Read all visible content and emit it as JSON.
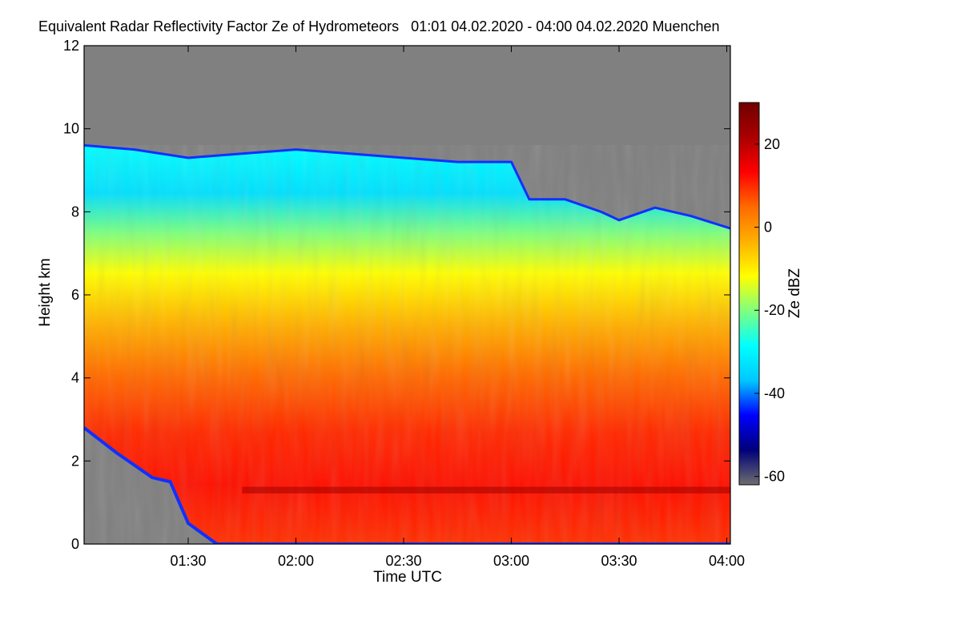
{
  "chart_data": {
    "type": "heatmap",
    "title": "Equivalent Radar Reflectivity Factor Ze of Hydrometeors   01:01 04.02.2020 - 04:00 04.02.2020 Muenchen",
    "xlabel": "Time UTC",
    "ylabel": "Height km",
    "x_unit": "hours UTC",
    "xlim": [
      "01:01",
      "04:01"
    ],
    "x_ticks": [
      "01:30",
      "02:00",
      "02:30",
      "03:00",
      "03:30",
      "04:00"
    ],
    "ylim": [
      0,
      12
    ],
    "y_ticks": [
      "0",
      "2",
      "4",
      "6",
      "8",
      "10",
      "12"
    ],
    "no_echo_color": "#808080",
    "colorbar": {
      "label": "Ze dBZ",
      "range": [
        -62,
        30
      ],
      "ticks": [
        "-60",
        "-40",
        "-20",
        "0",
        "20"
      ],
      "colors": [
        "#6e6e6e",
        "#00007a",
        "#0000ff",
        "#00c8ff",
        "#00ffff",
        "#7fff7f",
        "#ffff00",
        "#ffb000",
        "#ff6a00",
        "#ff0000",
        "#aa0000",
        "#700000"
      ]
    },
    "echo_top_km": [
      {
        "time": "01:01",
        "top": 9.6
      },
      {
        "time": "01:15",
        "top": 9.5
      },
      {
        "time": "01:30",
        "top": 9.3
      },
      {
        "time": "01:45",
        "top": 9.4
      },
      {
        "time": "02:00",
        "top": 9.5
      },
      {
        "time": "02:15",
        "top": 9.4
      },
      {
        "time": "02:30",
        "top": 9.3
      },
      {
        "time": "02:45",
        "top": 9.2
      },
      {
        "time": "03:00",
        "top": 9.2
      },
      {
        "time": "03:05",
        "top": 8.3
      },
      {
        "time": "03:15",
        "top": 8.3
      },
      {
        "time": "03:25",
        "top": 8.0
      },
      {
        "time": "03:30",
        "top": 7.8
      },
      {
        "time": "03:40",
        "top": 8.1
      },
      {
        "time": "03:50",
        "top": 7.9
      },
      {
        "time": "04:01",
        "top": 7.6
      }
    ],
    "echo_base_km": [
      {
        "time": "01:01",
        "base": 2.8
      },
      {
        "time": "01:10",
        "base": 2.2
      },
      {
        "time": "01:20",
        "base": 1.6
      },
      {
        "time": "01:25",
        "base": 1.5
      },
      {
        "time": "01:30",
        "base": 0.5
      },
      {
        "time": "01:38",
        "base": 0.0
      },
      {
        "time": "04:01",
        "base": 0.0
      }
    ],
    "melting_layer_km": 1.3
  }
}
